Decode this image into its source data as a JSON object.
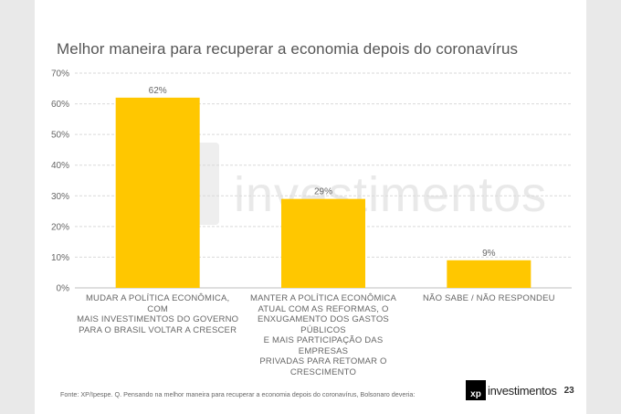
{
  "title": "Melhor maneira para recuperar a economia depois do coronavírus",
  "watermark": "investimentos",
  "source": "Fonte: XP/Ipespe. Q. Pensando na melhor maneira para recuperar a economia depois do coronavírus, Bolsonaro deveria:",
  "brand": {
    "logo": "xp",
    "name": "investimentos",
    "page": "23"
  },
  "colors": {
    "bar": "#FFC700",
    "grid": "#d9d9d9",
    "text": "#666666"
  },
  "chart_data": {
    "type": "bar",
    "categories": [
      "MUDAR A POLÍTICA ECONÔMICA, COM MAIS INVESTIMENTOS DO GOVERNO PARA O BRASIL VOLTAR A CRESCER",
      "MANTER A POLÍTICA ECONÔMICA ATUAL COM AS REFORMAS, O ENXUGAMENTO DOS GASTOS PÚBLICOS E MAIS PARTICIPAÇÃO DAS EMPRESAS PRIVADAS PARA RETOMAR O CRESCIMENTO",
      "NÃO SABE / NÃO RESPONDEU"
    ],
    "category_lines": [
      [
        "MUDAR A POLÍTICA ECONÔMICA, COM",
        "MAIS INVESTIMENTOS DO GOVERNO",
        "PARA O BRASIL VOLTAR A CRESCER"
      ],
      [
        "MANTER A POLÍTICA ECONÔMICA",
        "ATUAL COM AS REFORMAS, O",
        "ENXUGAMENTO DOS GASTOS PÚBLICOS",
        "E MAIS PARTICIPAÇÃO DAS EMPRESAS",
        "PRIVADAS PARA RETOMAR O",
        "CRESCIMENTO"
      ],
      [
        "NÃO SABE / NÃO RESPONDEU"
      ]
    ],
    "values": [
      62,
      29,
      9
    ],
    "data_labels": [
      "62%",
      "29%",
      "9%"
    ],
    "yticks": [
      "0%",
      "10%",
      "20%",
      "30%",
      "40%",
      "50%",
      "60%",
      "70%"
    ],
    "ylim": [
      0,
      70
    ],
    "grid": true,
    "title": "Melhor maneira para recuperar a economia depois do coronavírus"
  }
}
